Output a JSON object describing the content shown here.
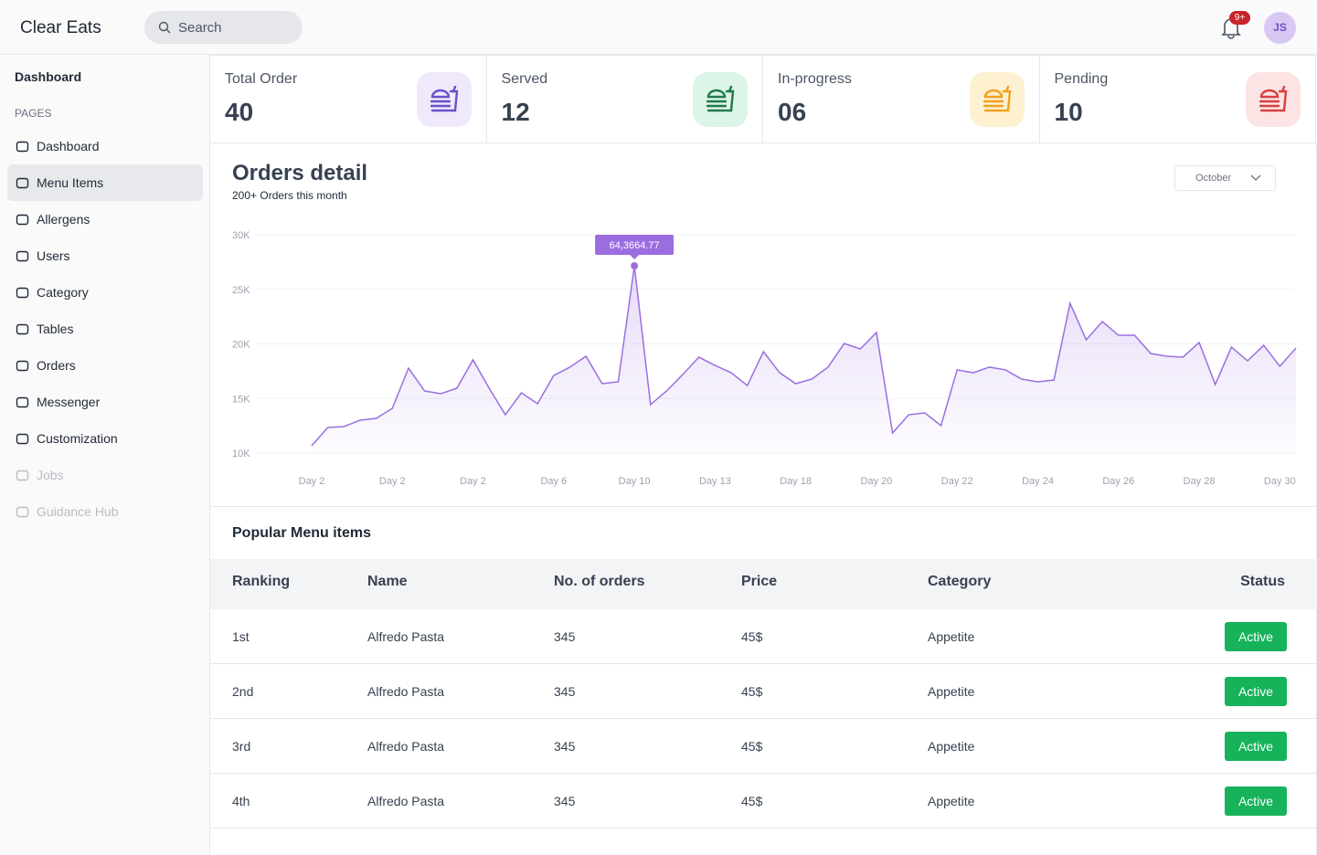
{
  "header": {
    "brand": "Clear Eats",
    "search": "Search",
    "badge": "9+",
    "avatar": "JS"
  },
  "sidebar": {
    "top": "Dashboard",
    "section": "PAGES",
    "items": [
      {
        "label": "Dashboard"
      },
      {
        "label": "Menu Items",
        "active": true
      },
      {
        "label": "Allergens"
      },
      {
        "label": "Users"
      },
      {
        "label": "Category"
      },
      {
        "label": "Tables"
      },
      {
        "label": "Orders"
      },
      {
        "label": "Messenger"
      },
      {
        "label": "Customization"
      },
      {
        "label": "Jobs",
        "disabled": true
      },
      {
        "label": "Guidance Hub",
        "disabled": true
      }
    ]
  },
  "stats": [
    {
      "label": "Total Order",
      "value": "40",
      "color": "#6b4fc9",
      "bg": "#efe9fb"
    },
    {
      "label": "Served",
      "value": "12",
      "color": "#1f7a4a",
      "bg": "#dcf5e6"
    },
    {
      "label": "In-progress",
      "value": "06",
      "color": "#f0a020",
      "bg": "#fdf1d2"
    },
    {
      "label": "Pending",
      "value": "10",
      "color": "#d64040",
      "bg": "#fde4e4"
    }
  ],
  "chart_data": {
    "type": "line",
    "title": "Orders detail",
    "subtitle": "200+ Orders this month",
    "dropdown": "October",
    "annotation": "64,3664.77",
    "color": "#9b6ee0",
    "categories": [
      "Day 2",
      null,
      null,
      null,
      null,
      "Day 2",
      null,
      null,
      null,
      null,
      "Day 2",
      null,
      null,
      null,
      null,
      "Day 6",
      null,
      null,
      null,
      null,
      "Day 10",
      null,
      null,
      null,
      null,
      "Day 13",
      null,
      null,
      null,
      null,
      "Day 18",
      null,
      null,
      null,
      null,
      "Day 20",
      null,
      null,
      null,
      null,
      "Day 22",
      null,
      null,
      null,
      null,
      "Day 24",
      null,
      null,
      null,
      null,
      "Day 26",
      null,
      null,
      null,
      null,
      "Day 28",
      null,
      null,
      null,
      null,
      "Day 30",
      null
    ],
    "values": [
      10670,
      12340,
      12430,
      13010,
      13180,
      14100,
      17780,
      15690,
      15440,
      15940,
      18540,
      15940,
      13510,
      15520,
      14520,
      17110,
      17870,
      18870,
      16360,
      16530,
      27150,
      14440,
      15690,
      17200,
      18790,
      18030,
      17360,
      16190,
      19290,
      17360,
      16360,
      16780,
      17870,
      20040,
      19540,
      21050,
      11840,
      13510,
      13680,
      12510,
      17620,
      17360,
      17870,
      17620,
      16780,
      16530,
      16690,
      23720,
      20380,
      22050,
      20790,
      20790,
      19120,
      18870,
      18790,
      20130,
      16280,
      19710,
      18450,
      19870,
      17950,
      19620
    ],
    "ylim": [
      10000,
      30000
    ],
    "yticks": [
      {
        "value": 10000,
        "label": "10K"
      },
      {
        "value": 15000,
        "label": "15K"
      },
      {
        "value": 20000,
        "label": "20K"
      },
      {
        "value": 25000,
        "label": "25K"
      },
      {
        "value": 30000,
        "label": "30K"
      }
    ],
    "grid": true
  },
  "table": {
    "title": "Popular Menu items",
    "columns": [
      "Ranking",
      "Name",
      "No. of orders",
      "Price",
      "Category",
      "Status"
    ],
    "rows": [
      [
        "1st",
        "Alfredo Pasta",
        "345",
        "45$",
        "Appetite",
        "Active"
      ],
      [
        "2nd",
        "Alfredo Pasta",
        "345",
        "45$",
        "Appetite",
        "Active"
      ],
      [
        "3rd",
        "Alfredo Pasta",
        "345",
        "45$",
        "Appetite",
        "Active"
      ],
      [
        "4th",
        "Alfredo Pasta",
        "345",
        "45$",
        "Appetite",
        "Active"
      ]
    ]
  }
}
